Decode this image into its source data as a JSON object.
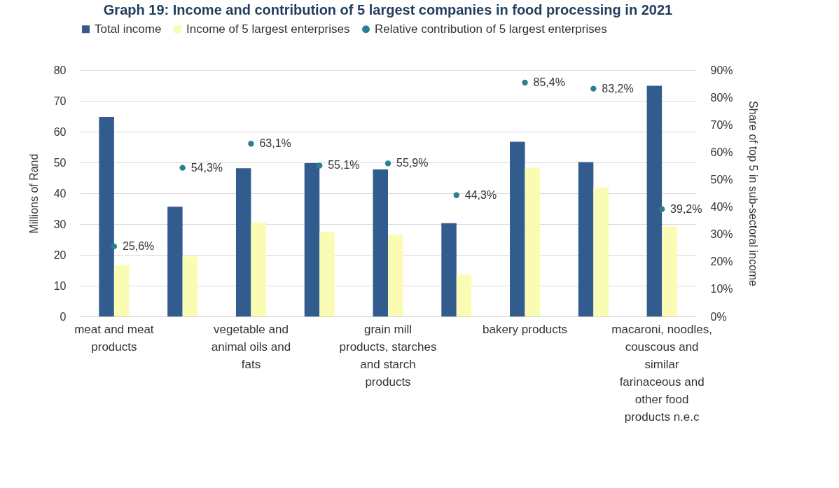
{
  "chart_data": {
    "type": "bar",
    "title": "Graph 19: Income and contribution of 5 largest companies in food processing in 2021",
    "categories": [
      "meat and meat products",
      null,
      "vegetable and animal oils and fats",
      null,
      "grain mill products, starches and starch products",
      null,
      "bakery products",
      null,
      "macaroni, noodles, couscous and similar farinaceous and other food products n.e.c"
    ],
    "series": [
      {
        "name": "Total income",
        "color": "#335c8e",
        "values": [
          64.8,
          35.6,
          48.1,
          49.8,
          47.7,
          30.3,
          56.7,
          50.1,
          74.9
        ]
      },
      {
        "name": "Income of 5 largest enterprises",
        "color": "#fafcb4",
        "values": [
          16.6,
          19.5,
          30.5,
          27.4,
          26.5,
          13.5,
          48.3,
          41.9,
          29.2
        ]
      },
      {
        "name": "Relative contribution of 5 largest enterprises",
        "type": "scatter",
        "axis": "y2",
        "color": "#2a7f93",
        "marker": "circle",
        "values": [
          25.6,
          54.3,
          63.1,
          55.1,
          55.9,
          44.3,
          85.4,
          83.2,
          39.2
        ],
        "value_labels": [
          "25,6%",
          "54,3%",
          "63,1%",
          "55,1%",
          "55,9%",
          "44,3%",
          "85,4%",
          "83,2%",
          "39,2%"
        ]
      }
    ],
    "ylabel": "Millions of Rand",
    "y2label": "Share of top 5 in sub-sectoral income",
    "ylim": [
      0,
      80
    ],
    "yticks": [
      0,
      10,
      20,
      30,
      40,
      50,
      60,
      70,
      80
    ],
    "y2lim": [
      0,
      90
    ],
    "y2ticks": [
      {
        "value": 0,
        "label": "0%"
      },
      {
        "value": 10,
        "label": "10%"
      },
      {
        "value": 20,
        "label": "20%"
      },
      {
        "value": 30,
        "label": "30%"
      },
      {
        "value": 40,
        "label": "40%"
      },
      {
        "value": 50,
        "label": "50%"
      },
      {
        "value": 60,
        "label": "60%"
      },
      {
        "value": 70,
        "label": "70%"
      },
      {
        "value": 80,
        "label": "80%"
      },
      {
        "value": 90,
        "label": "90%"
      }
    ],
    "grid": "y",
    "legend": "top"
  }
}
